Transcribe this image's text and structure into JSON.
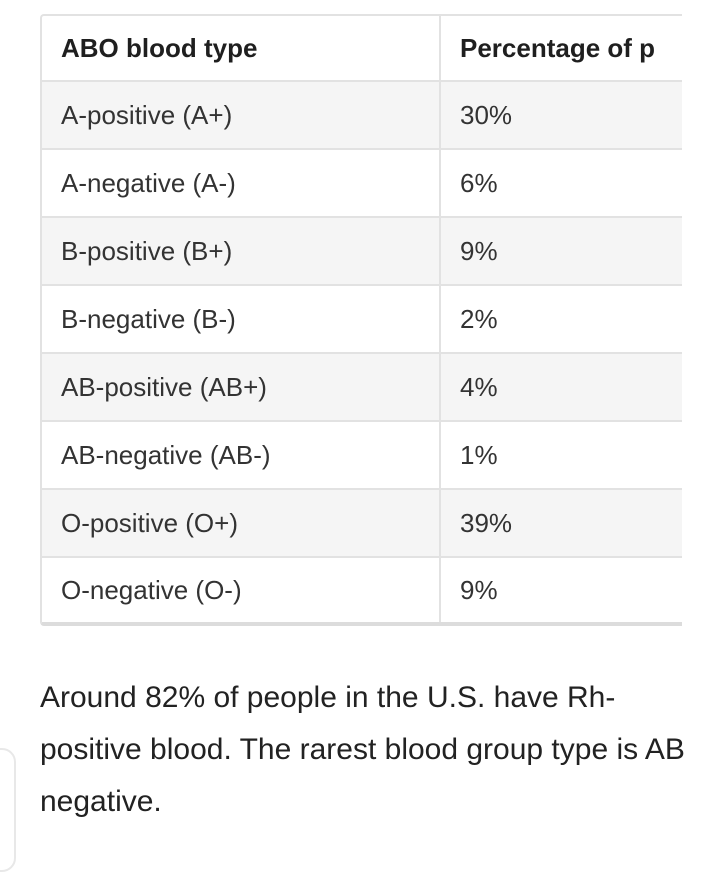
{
  "table": {
    "headers": [
      "ABO blood type",
      "Percentage of p"
    ],
    "rows": [
      {
        "type": "A-positive (A+)",
        "percent": "30%"
      },
      {
        "type": "A-negative (A-)",
        "percent": "6%"
      },
      {
        "type": "B-positive (B+)",
        "percent": "9%"
      },
      {
        "type": "B-negative (B-)",
        "percent": "2%"
      },
      {
        "type": "AB-positive (AB+)",
        "percent": "4%"
      },
      {
        "type": "AB-negative (AB-)",
        "percent": "1%"
      },
      {
        "type": "O-positive (O+)",
        "percent": "39%"
      },
      {
        "type": "O-negative (O-)",
        "percent": "9%"
      }
    ]
  },
  "paragraph": "Around 82% of people in the U.S. have Rh-positive blood. The rarest blood group type is AB negative.",
  "colors": {
    "stripe": "#f5f5f5",
    "border": "#e2e2e2",
    "text": "#222222"
  }
}
